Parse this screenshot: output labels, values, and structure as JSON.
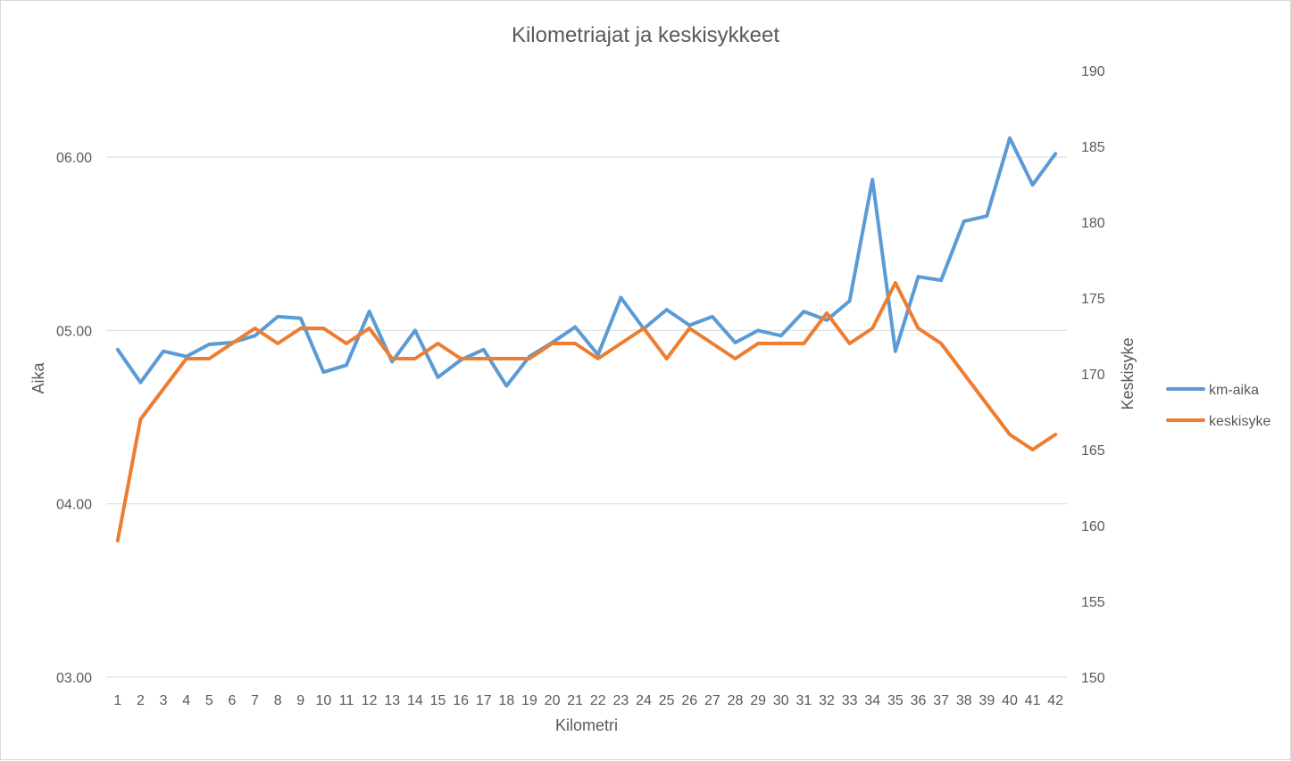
{
  "chart_data": {
    "type": "line",
    "title": "Kilometriajat ja keskisykkeet",
    "xlabel": "Kilometri",
    "ylabel_left": "Aika",
    "ylabel_right": "Keskisyke",
    "categories": [
      "1",
      "2",
      "3",
      "4",
      "5",
      "6",
      "7",
      "8",
      "9",
      "10",
      "11",
      "12",
      "13",
      "14",
      "15",
      "16",
      "17",
      "18",
      "19",
      "20",
      "21",
      "22",
      "23",
      "24",
      "25",
      "26",
      "27",
      "28",
      "29",
      "30",
      "31",
      "32",
      "33",
      "34",
      "35",
      "36",
      "37",
      "38",
      "39",
      "40",
      "41",
      "42"
    ],
    "y_left": {
      "range": [
        3.0,
        6.5
      ],
      "ticks": [
        3.0,
        4.0,
        5.0,
        6.0
      ],
      "tick_labels": [
        "03.00",
        "04.00",
        "05.00",
        "06.00"
      ]
    },
    "y_right": {
      "range": [
        150,
        190
      ],
      "ticks": [
        150,
        155,
        160,
        165,
        170,
        175,
        180,
        185,
        190
      ],
      "tick_labels": [
        "150",
        "155",
        "160",
        "165",
        "170",
        "175",
        "180",
        "185",
        "190"
      ]
    },
    "grid": true,
    "legend_position": "right",
    "series": [
      {
        "name": "km-aika",
        "axis": "left",
        "color": "#5b9bd5",
        "values": [
          4.89,
          4.7,
          4.88,
          4.85,
          4.92,
          4.93,
          4.97,
          5.08,
          5.07,
          4.76,
          4.8,
          5.11,
          4.82,
          5.0,
          4.73,
          4.83,
          4.89,
          4.68,
          4.85,
          4.93,
          5.02,
          4.86,
          5.19,
          5.01,
          5.12,
          5.03,
          5.08,
          4.93,
          5.0,
          4.97,
          5.11,
          5.06,
          5.17,
          5.87,
          4.88,
          5.31,
          5.29,
          5.63,
          5.66,
          6.11,
          5.84,
          6.02
        ]
      },
      {
        "name": "keskisyke",
        "axis": "right",
        "color": "#ed7d31",
        "values": [
          159,
          167,
          169,
          171,
          171,
          172,
          173,
          172,
          173,
          173,
          172,
          173,
          171,
          171,
          172,
          171,
          171,
          171,
          171,
          172,
          172,
          171,
          172,
          173,
          171,
          173,
          172,
          171,
          172,
          172,
          172,
          174,
          172,
          173,
          176,
          173,
          172,
          170,
          168,
          166,
          165,
          166
        ]
      }
    ]
  }
}
